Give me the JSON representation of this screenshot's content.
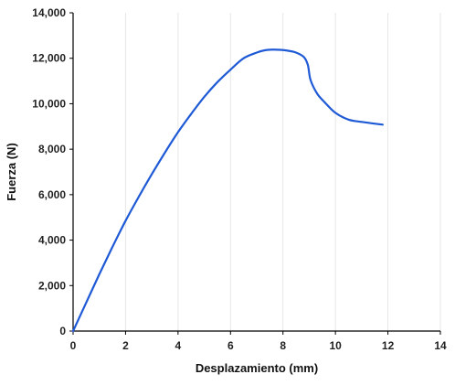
{
  "chart_data": {
    "type": "line",
    "title": "",
    "xlabel": "Desplazamiento (mm)",
    "ylabel": "Fuerza (N)",
    "xlim": [
      0,
      14
    ],
    "ylim": [
      0,
      14000
    ],
    "x_ticks": [
      0,
      2,
      4,
      6,
      8,
      10,
      12,
      14
    ],
    "x_tick_labels": [
      "0",
      "2",
      "4",
      "6",
      "8",
      "10",
      "12",
      "14"
    ],
    "y_ticks": [
      0,
      2000,
      4000,
      6000,
      8000,
      10000,
      12000,
      14000
    ],
    "y_tick_labels": [
      "0",
      "2,000",
      "4,000",
      "6,000",
      "8,000",
      "10,000",
      "12,000",
      "14,000"
    ],
    "grid": "vertical",
    "legend": "none",
    "line_color": "#1f5ad6",
    "series": [
      {
        "x": [
          0.0,
          0.5,
          1.0,
          1.5,
          2.0,
          2.5,
          3.0,
          3.5,
          4.0,
          4.5,
          5.0,
          5.5,
          6.0,
          6.5,
          7.0,
          7.3,
          7.6,
          7.9,
          8.2,
          8.5,
          8.8,
          8.95,
          9.05,
          9.3,
          9.6,
          10.0,
          10.5,
          11.0,
          11.8
        ],
        "y": [
          0,
          1250,
          2500,
          3700,
          4850,
          5900,
          6900,
          7850,
          8750,
          9550,
          10300,
          10950,
          11500,
          12000,
          12250,
          12350,
          12380,
          12370,
          12330,
          12250,
          12050,
          11700,
          11050,
          10450,
          10050,
          9600,
          9300,
          9200,
          9080
        ]
      }
    ]
  }
}
